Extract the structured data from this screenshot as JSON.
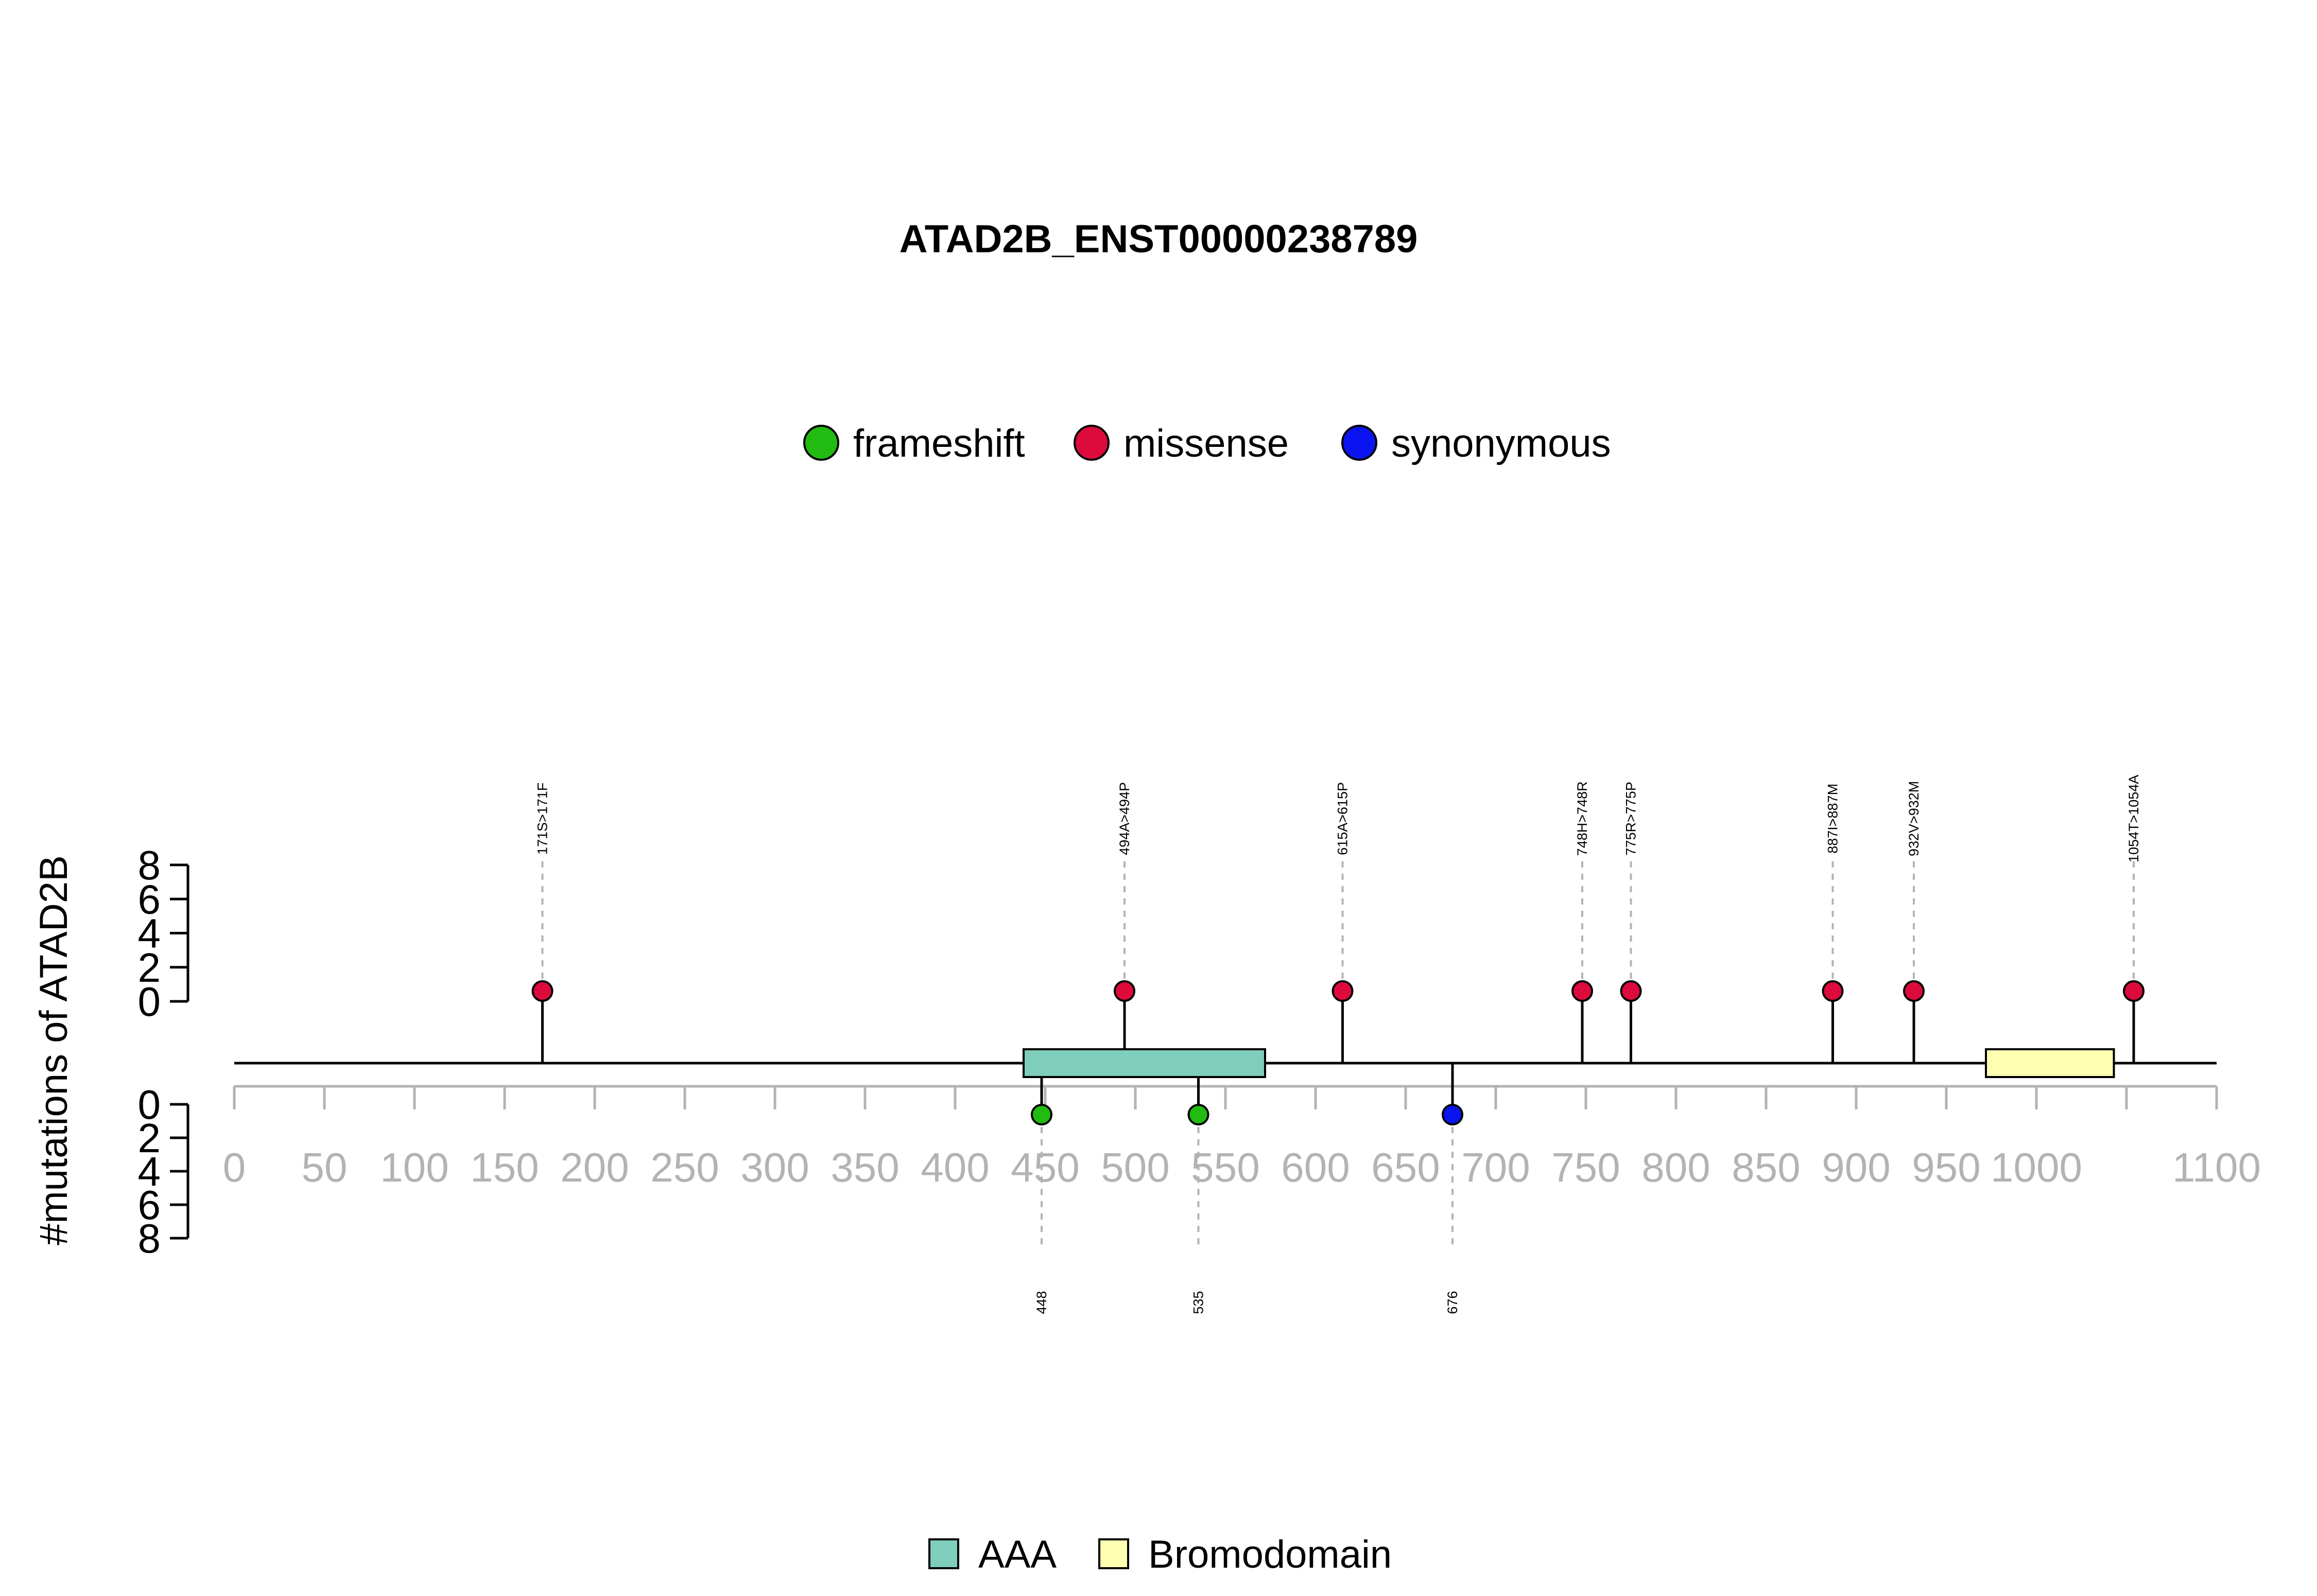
{
  "chart_data": {
    "type": "lollipop",
    "title": "ATAD2B_ENST00000238789",
    "ylabel": "#mutations of ATAD2B",
    "xlim": [
      0,
      1100
    ],
    "x_ticks": [
      0,
      50,
      100,
      150,
      200,
      250,
      300,
      350,
      400,
      450,
      500,
      550,
      600,
      650,
      700,
      750,
      800,
      850,
      900,
      950,
      1000,
      1100
    ],
    "y_ticks_top": [
      "0",
      "2",
      "4",
      "6",
      "8"
    ],
    "y_ticks_bottom": [
      "0",
      "2",
      "4",
      "6",
      "8"
    ],
    "mutation_legend": [
      {
        "name": "frameshift",
        "color": "#22bb11"
      },
      {
        "name": "missense",
        "color": "#dd0a3c"
      },
      {
        "name": "synonymous",
        "color": "#0a14f0"
      }
    ],
    "mutations_top": [
      {
        "pos": 171,
        "count": 1,
        "type": "missense",
        "label": "171S>171F"
      },
      {
        "pos": 494,
        "count": 1,
        "type": "missense",
        "label": "494A>494P"
      },
      {
        "pos": 615,
        "count": 1,
        "type": "missense",
        "label": "615A>615P"
      },
      {
        "pos": 748,
        "count": 1,
        "type": "missense",
        "label": "748H>748R"
      },
      {
        "pos": 775,
        "count": 1,
        "type": "missense",
        "label": "775R>775P"
      },
      {
        "pos": 887,
        "count": 1,
        "type": "missense",
        "label": "887I>887M"
      },
      {
        "pos": 932,
        "count": 1,
        "type": "missense",
        "label": "932V>932M"
      },
      {
        "pos": 1054,
        "count": 1,
        "type": "missense",
        "label": "1054T>1054A"
      }
    ],
    "mutations_bottom": [
      {
        "pos": 448,
        "count": 1,
        "type": "frameshift",
        "label": "448"
      },
      {
        "pos": 535,
        "count": 1,
        "type": "frameshift",
        "label": "535"
      },
      {
        "pos": 676,
        "count": 1,
        "type": "synonymous",
        "label": "676"
      }
    ],
    "domains": [
      {
        "name": "AAA",
        "start": 438,
        "end": 572,
        "color": "#7fcdbb"
      },
      {
        "name": "Bromodomain",
        "start": 972,
        "end": 1043,
        "color": "#ffffb2"
      }
    ]
  }
}
